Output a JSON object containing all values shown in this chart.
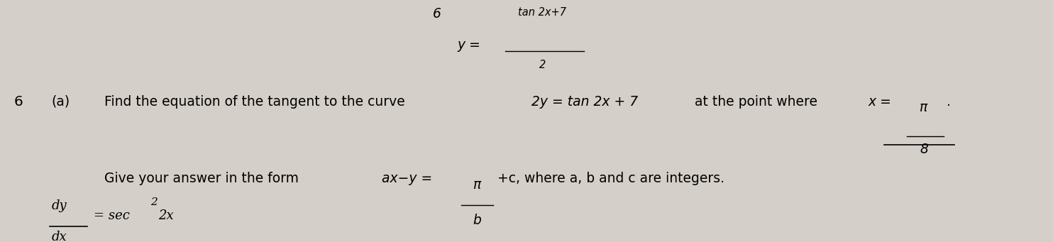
{
  "background_color": "#d4cfc8",
  "fig_width": 14.84,
  "fig_height": 3.41,
  "dpi": 100,
  "question_number": "6",
  "part_label": "(a)",
  "main_text": "Find the equation of the tangent to the curve",
  "curve_equation": "2y = tan 2x + 7",
  "point_text": "at the point where",
  "x_value": "x =",
  "x_fraction_num": "π",
  "x_fraction_den": "8",
  "give_text": "Give your answer in the form",
  "form_text": "ax−y =",
  "form_frac_num": "π",
  "form_frac_den": "b",
  "form_end": "+c, where a, b and c are integers.",
  "top_number": "6",
  "top_y_label": "y =",
  "top_frac_num": "tan 2x+7",
  "top_frac_den": "2",
  "bottom_dy": "dy",
  "bottom_dx": "dx",
  "bottom_eq": "= sec",
  "bottom_exp": "2",
  "bottom_end": "2x"
}
